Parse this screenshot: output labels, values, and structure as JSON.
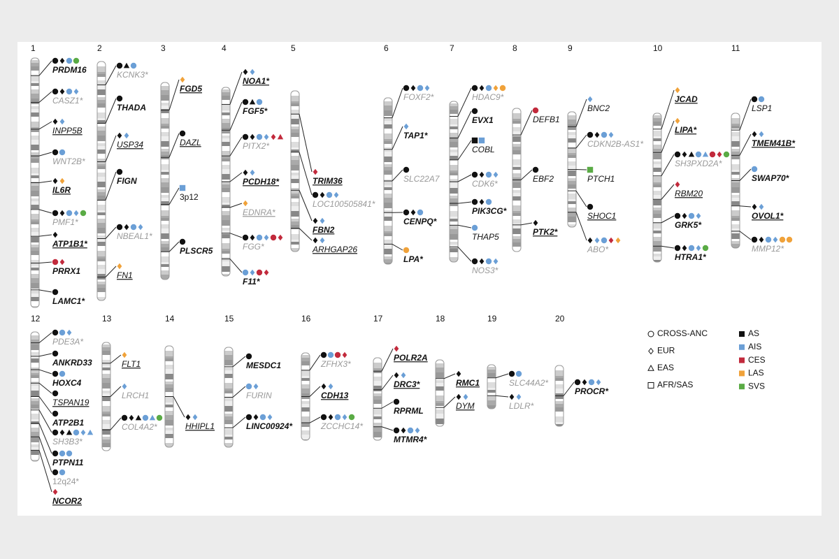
{
  "chromosomes": [
    {
      "number": "1",
      "loci": [
        {
          "label": "PRDM16",
          "style": "bold",
          "markers": "circle-AS diamond-AS circle-AIS circle-SVS"
        },
        {
          "label": "CASZ1*",
          "style": "gray",
          "markers": "circle-AS diamond-AS circle-AIS diamond-AIS"
        },
        {
          "label": "INPP5B",
          "style": "underline",
          "markers": "diamond-AS diamond-AIS"
        },
        {
          "label": "WNT2B*",
          "style": "gray",
          "markers": "circle-AS circle-AIS"
        },
        {
          "label": "IL6R",
          "style": "bold underline",
          "markers": "diamond-AS diamond-LAS"
        },
        {
          "label": "PMF1*",
          "style": "gray",
          "markers": "circle-AS diamond-AS circle-AIS diamond-AIS circle-SVS"
        },
        {
          "label": "ATP1B1*",
          "style": "bold underline",
          "markers": "diamond-AS"
        },
        {
          "label": "PRRX1",
          "style": "bold",
          "markers": "circle-CES diamond-CES"
        },
        {
          "label": "LAMC1*",
          "style": "bold",
          "markers": "circle-AS"
        }
      ]
    },
    {
      "number": "2",
      "loci": [
        {
          "label": "KCNK3*",
          "style": "gray",
          "markers": "circle-AS triangle-AS circle-AIS"
        },
        {
          "label": "THADA",
          "style": "bold",
          "markers": "circle-AS"
        },
        {
          "label": "USP34",
          "style": "underline",
          "markers": "diamond-AS diamond-AIS"
        },
        {
          "label": "FIGN",
          "style": "bold",
          "markers": "circle-AS"
        },
        {
          "label": "NBEAL1*",
          "style": "gray",
          "markers": "circle-AS diamond-AS circle-AIS diamond-AIS"
        },
        {
          "label": "FN1",
          "style": "underline",
          "markers": "diamond-LAS"
        }
      ]
    },
    {
      "number": "3",
      "loci": [
        {
          "label": "FGD5",
          "style": "bold underline",
          "markers": "diamond-LAS"
        },
        {
          "label": "DAZL",
          "style": "underline",
          "markers": "circle-AS"
        },
        {
          "label": "3p12",
          "style": "upright",
          "markers": "square-AIS"
        },
        {
          "label": "PLSCR5",
          "style": "bold",
          "markers": "circle-AS"
        }
      ]
    },
    {
      "number": "4",
      "loci": [
        {
          "label": "NOA1*",
          "style": "bold underline",
          "markers": "diamond-AS diamond-AIS"
        },
        {
          "label": "FGF5*",
          "style": "bold",
          "markers": "circle-AS triangle-AS circle-AIS"
        },
        {
          "label": "PITX2*",
          "style": "gray",
          "markers": "circle-AS diamond-AS circle-AIS diamond-AIS diamond-CES triangle-CES"
        },
        {
          "label": "PCDH18*",
          "style": "bold underline",
          "markers": "diamond-AS diamond-AIS"
        },
        {
          "label": "EDNRA*",
          "style": "gray underline",
          "markers": "diamond-LAS"
        },
        {
          "label": "FGG*",
          "style": "gray",
          "markers": "circle-AS diamond-AS circle-AIS diamond-AIS circle-CES diamond-CES"
        },
        {
          "label": "F11*",
          "style": "bold",
          "markers": "circle-AIS diamond-AIS circle-CES diamond-CES"
        }
      ]
    },
    {
      "number": "5",
      "loci": [
        {
          "label": "TRIM36",
          "style": "bold underline",
          "markers": "diamond-CES"
        },
        {
          "label": "LOC100505841*",
          "style": "gray",
          "markers": "circle-AS diamond-AS circle-AIS diamond-AIS"
        },
        {
          "label": "FBN2",
          "style": "bold underline",
          "markers": "diamond-AS diamond-AIS"
        },
        {
          "label": "ARHGAP26",
          "style": "underline",
          "markers": "diamond-AS diamond-AIS"
        }
      ]
    },
    {
      "number": "6",
      "loci": [
        {
          "label": "FOXF2*",
          "style": "gray",
          "markers": "circle-AS diamond-AS circle-AIS diamond-AIS"
        },
        {
          "label": "TAP1*",
          "style": "bold",
          "markers": "diamond-AIS"
        },
        {
          "label": "SLC22A7",
          "style": "gray",
          "markers": "circle-AS"
        },
        {
          "label": "CENPQ*",
          "style": "bold",
          "markers": "circle-AS diamond-AS circle-AIS"
        },
        {
          "label": "LPA*",
          "style": "bold",
          "markers": "circle-LAS"
        }
      ]
    },
    {
      "number": "7",
      "loci": [
        {
          "label": "HDAC9*",
          "style": "gray",
          "markers": "circle-AS diamond-AS circle-AIS diamond-LAS circle-LAS"
        },
        {
          "label": "EVX1",
          "style": "bold",
          "markers": "circle-AS"
        },
        {
          "label": "COBL",
          "style": "plain",
          "markers": "square-AS square-AIS"
        },
        {
          "label": "CDK6*",
          "style": "gray",
          "markers": "circle-AS diamond-AS circle-AIS diamond-AIS"
        },
        {
          "label": "PIK3CG*",
          "style": "bold",
          "markers": "circle-AS diamond-AS circle-AIS"
        },
        {
          "label": "THAP5",
          "style": "plain",
          "markers": "circle-AIS"
        },
        {
          "label": "NOS3*",
          "style": "gray",
          "markers": "circle-AS diamond-AS circle-AIS diamond-AIS"
        }
      ]
    },
    {
      "number": "8",
      "loci": [
        {
          "label": "DEFB1",
          "style": "plain",
          "markers": "circle-CES"
        },
        {
          "label": "EBF2",
          "style": "plain",
          "markers": "circle-AS"
        },
        {
          "label": "PTK2*",
          "style": "bold underline",
          "markers": "diamond-AS"
        }
      ]
    },
    {
      "number": "9",
      "loci": [
        {
          "label": "BNC2",
          "style": "plain",
          "markers": "diamond-AIS"
        },
        {
          "label": "CDKN2B-AS1*",
          "style": "gray",
          "markers": "circle-AS diamond-AS circle-AIS diamond-AIS"
        },
        {
          "label": "PTCH1",
          "style": "plain",
          "markers": "square-SVS"
        },
        {
          "label": "SHOC1",
          "style": "underline",
          "markers": "circle-AS"
        },
        {
          "label": "ABO*",
          "style": "gray",
          "markers": "diamond-AS diamond-AIS circle-AIS diamond-CES diamond-LAS"
        }
      ]
    },
    {
      "number": "10",
      "loci": [
        {
          "label": "JCAD",
          "style": "bold underline",
          "markers": "diamond-LAS"
        },
        {
          "label": "LIPA*",
          "style": "bold underline",
          "markers": "diamond-LAS"
        },
        {
          "label": "SH3PXD2A*",
          "style": "gray",
          "markers": "circle-AS diamond-AS triangle-AS circle-AIS triangle-AIS circle-CES diamond-CES circle-SVS"
        },
        {
          "label": "RBM20",
          "style": "underline",
          "markers": "diamond-CES"
        },
        {
          "label": "GRK5*",
          "style": "bold",
          "markers": "circle-AS diamond-AS circle-AIS diamond-AIS"
        },
        {
          "label": "HTRA1*",
          "style": "bold",
          "markers": "circle-AS diamond-AS circle-AIS diamond-AIS circle-SVS"
        }
      ]
    },
    {
      "number": "11",
      "loci": [
        {
          "label": "LSP1",
          "style": "plain",
          "markers": "circle-AS circle-AIS"
        },
        {
          "label": "TMEM41B*",
          "style": "bold underline",
          "markers": "diamond-AS diamond-AIS"
        },
        {
          "label": "SWAP70*",
          "style": "bold",
          "markers": "circle-AIS"
        },
        {
          "label": "OVOL1*",
          "style": "bold underline",
          "markers": "diamond-AS diamond-AIS"
        },
        {
          "label": "MMP12*",
          "style": "gray",
          "markers": "circle-AS diamond-AS circle-AIS diamond-AIS circle-LAS circle-LAS"
        }
      ]
    },
    {
      "number": "12",
      "loci": [
        {
          "label": "PDE3A*",
          "style": "gray",
          "markers": "circle-AS circle-AIS diamond-AIS"
        },
        {
          "label": "ANKRD33",
          "style": "bold",
          "markers": "circle-AS"
        },
        {
          "label": "HOXC4",
          "style": "bold",
          "markers": "circle-AS circle-AIS"
        },
        {
          "label": "TSPAN19",
          "style": "underline",
          "markers": "circle-AS"
        },
        {
          "label": "ATP2B1",
          "style": "bold",
          "markers": "circle-AS"
        },
        {
          "label": "SH3B3*",
          "style": "gray",
          "markers": "circle-AS diamond-AS triangle-AS circle-AIS diamond-AIS triangle-AIS"
        },
        {
          "label": "PTPN11",
          "style": "bold",
          "markers": "circle-AS circle-AIS circle-AIS"
        },
        {
          "label": "12q24*",
          "style": "gray upright",
          "markers": "circle-AS circle-AIS"
        },
        {
          "label": "NCOR2",
          "style": "bold underline",
          "markers": "diamond-CES"
        }
      ]
    },
    {
      "number": "13",
      "loci": [
        {
          "label": "FLT1",
          "style": "underline",
          "markers": "diamond-LAS"
        },
        {
          "label": "LRCH1",
          "style": "gray",
          "markers": "diamond-AIS"
        },
        {
          "label": "COL4A2*",
          "style": "gray",
          "markers": "circle-AS diamond-AS triangle-AS circle-AIS triangle-AIS circle-SVS"
        }
      ]
    },
    {
      "number": "14",
      "loci": [
        {
          "label": "HHIPL1",
          "style": "underline",
          "markers": "diamond-AS diamond-AIS"
        }
      ]
    },
    {
      "number": "15",
      "loci": [
        {
          "label": "MESDC1",
          "style": "bold",
          "markers": "circle-AS"
        },
        {
          "label": "FURIN",
          "style": "gray",
          "markers": "circle-AIS diamond-AIS"
        },
        {
          "label": "LINC00924*",
          "style": "bold",
          "markers": "circle-AS diamond-AS circle-AIS diamond-AIS"
        }
      ]
    },
    {
      "number": "16",
      "loci": [
        {
          "label": "ZFHX3*",
          "style": "gray",
          "markers": "circle-AS circle-AIS circle-CES diamond-CES"
        },
        {
          "label": "CDH13",
          "style": "bold underline",
          "markers": "diamond-AS diamond-AIS"
        },
        {
          "label": "ZCCHC14*",
          "style": "gray",
          "markers": "circle-AS diamond-AS circle-AIS diamond-AIS circle-SVS"
        }
      ]
    },
    {
      "number": "17",
      "loci": [
        {
          "label": "POLR2A",
          "style": "bold underline",
          "markers": "diamond-CES"
        },
        {
          "label": "DRC3*",
          "style": "bold underline",
          "markers": "diamond-AS diamond-AIS"
        },
        {
          "label": "RPRML",
          "style": "bold",
          "markers": "circle-AS"
        },
        {
          "label": "MTMR4*",
          "style": "bold",
          "markers": "circle-AS diamond-AS circle-AIS diamond-AIS"
        }
      ]
    },
    {
      "number": "18",
      "loci": [
        {
          "label": "RMC1",
          "style": "bold underline",
          "markers": "diamond-AS"
        },
        {
          "label": "DYM",
          "style": "underline",
          "markers": "diamond-AS diamond-AIS"
        }
      ]
    },
    {
      "number": "19",
      "loci": [
        {
          "label": "SLC44A2*",
          "style": "gray",
          "markers": "circle-AS circle-AIS"
        },
        {
          "label": "LDLR*",
          "style": "gray",
          "markers": "diamond-AS diamond-AIS"
        }
      ]
    },
    {
      "number": "20",
      "loci": [
        {
          "label": "PROCR*",
          "style": "bold",
          "markers": "circle-AS diamond-AS circle-AIS diamond-AIS"
        }
      ]
    }
  ],
  "legend": {
    "shapes": [
      {
        "shape": "circle",
        "label": "CROSS-ANC"
      },
      {
        "shape": "diamond",
        "label": "EUR"
      },
      {
        "shape": "triangle",
        "label": "EAS"
      },
      {
        "shape": "square",
        "label": "AFR/SAS"
      }
    ],
    "groups": [
      {
        "label": "AS",
        "color": "#111111"
      },
      {
        "label": "AIS",
        "color": "#6b9fd6"
      },
      {
        "label": "CES",
        "color": "#c22a3c"
      },
      {
        "label": "LAS",
        "color": "#f0a23a"
      },
      {
        "label": "SVS",
        "color": "#5aab45"
      }
    ]
  }
}
